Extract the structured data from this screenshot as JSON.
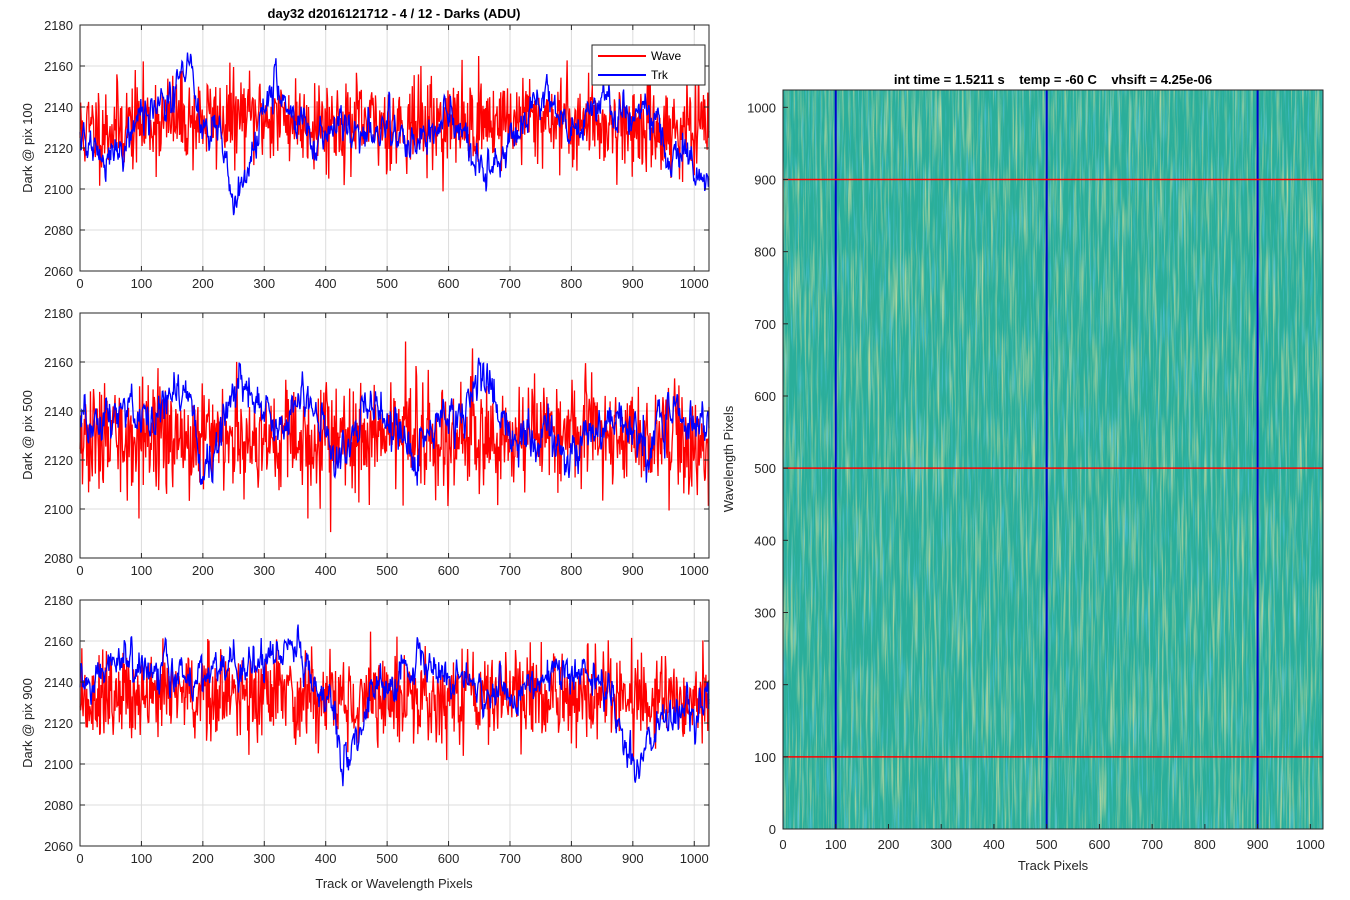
{
  "figure_title": "day32 d2016121712 - 4 / 12 - Darks (ADU)",
  "chart_data": [
    {
      "type": "line",
      "id": "top",
      "ylabel": "Dark @ pix 100",
      "xlabel": "",
      "xlim": [
        0,
        1024
      ],
      "ylim": [
        2060,
        2180
      ],
      "xticks": [
        0,
        100,
        200,
        300,
        400,
        500,
        600,
        700,
        800,
        900,
        1000
      ],
      "yticks": [
        2060,
        2080,
        2100,
        2120,
        2140,
        2160,
        2180
      ],
      "grid": true,
      "legend": "top-right",
      "series": [
        {
          "name": "Wave",
          "color": "#ff0000",
          "base": 2130,
          "noise": 11,
          "seed": 11,
          "trend_x": [
            0,
            120,
            300,
            450,
            600,
            760,
            900,
            1024
          ],
          "trend_y": [
            2128,
            2133,
            2135,
            2131,
            2132,
            2135,
            2130,
            2128
          ]
        },
        {
          "name": "Trk",
          "color": "#0000ff",
          "base": 2130,
          "noise": 4,
          "seed": 21,
          "trend_x": [
            0,
            20,
            40,
            80,
            120,
            160,
            180,
            200,
            230,
            250,
            270,
            300,
            320,
            340,
            360,
            380,
            400,
            430,
            450,
            480,
            500,
            520,
            540,
            560,
            580,
            600,
            620,
            640,
            660,
            680,
            700,
            720,
            740,
            760,
            780,
            800,
            820,
            840,
            860,
            880,
            900,
            920,
            940,
            960,
            980,
            1000,
            1024
          ],
          "trend_y": [
            2125,
            2120,
            2112,
            2128,
            2140,
            2150,
            2158,
            2130,
            2125,
            2090,
            2110,
            2140,
            2150,
            2138,
            2130,
            2125,
            2130,
            2133,
            2128,
            2125,
            2135,
            2128,
            2120,
            2128,
            2130,
            2135,
            2128,
            2115,
            2105,
            2110,
            2125,
            2130,
            2142,
            2148,
            2138,
            2130,
            2132,
            2140,
            2145,
            2138,
            2135,
            2140,
            2128,
            2115,
            2120,
            2100,
            2110
          ]
        }
      ]
    },
    {
      "type": "line",
      "id": "mid",
      "ylabel": "Dark @ pix 500",
      "xlabel": "",
      "xlim": [
        0,
        1024
      ],
      "ylim": [
        2080,
        2180
      ],
      "xticks": [
        0,
        100,
        200,
        300,
        400,
        500,
        600,
        700,
        800,
        900,
        1000
      ],
      "yticks": [
        2080,
        2100,
        2120,
        2140,
        2160,
        2180
      ],
      "grid": true,
      "series": [
        {
          "name": "Wave",
          "color": "#ff0000",
          "base": 2128,
          "noise": 11,
          "seed": 33,
          "trend_x": [
            0,
            200,
            400,
            600,
            800,
            1024
          ],
          "trend_y": [
            2127,
            2130,
            2130,
            2128,
            2132,
            2126
          ]
        },
        {
          "name": "Trk",
          "color": "#0000ff",
          "base": 2135,
          "noise": 4,
          "seed": 44,
          "trend_x": [
            0,
            20,
            40,
            60,
            80,
            100,
            120,
            140,
            160,
            180,
            200,
            220,
            240,
            260,
            280,
            300,
            320,
            340,
            360,
            380,
            400,
            420,
            440,
            460,
            480,
            500,
            520,
            540,
            560,
            580,
            600,
            620,
            640,
            660,
            680,
            700,
            720,
            740,
            760,
            780,
            800,
            820,
            840,
            860,
            880,
            900,
            920,
            940,
            960,
            980,
            1000,
            1024
          ],
          "trend_y": [
            2138,
            2130,
            2135,
            2140,
            2143,
            2138,
            2135,
            2142,
            2150,
            2145,
            2115,
            2125,
            2148,
            2152,
            2145,
            2140,
            2130,
            2138,
            2145,
            2140,
            2132,
            2118,
            2128,
            2140,
            2145,
            2138,
            2130,
            2120,
            2128,
            2135,
            2138,
            2140,
            2145,
            2155,
            2138,
            2132,
            2128,
            2125,
            2135,
            2125,
            2118,
            2130,
            2128,
            2135,
            2138,
            2130,
            2125,
            2130,
            2135,
            2140,
            2130,
            2140
          ]
        }
      ]
    },
    {
      "type": "line",
      "id": "bot",
      "ylabel": "Dark @ pix 900",
      "xlabel": "Track or Wavelength Pixels",
      "xlim": [
        0,
        1024
      ],
      "ylim": [
        2060,
        2180
      ],
      "xticks": [
        0,
        100,
        200,
        300,
        400,
        500,
        600,
        700,
        800,
        900,
        1000
      ],
      "yticks": [
        2060,
        2080,
        2100,
        2120,
        2140,
        2160,
        2180
      ],
      "grid": true,
      "series": [
        {
          "name": "Wave",
          "color": "#ff0000",
          "base": 2133,
          "noise": 11,
          "seed": 55,
          "trend_x": [
            0,
            200,
            400,
            600,
            800,
            1024
          ],
          "trend_y": [
            2130,
            2134,
            2133,
            2133,
            2134,
            2128
          ]
        },
        {
          "name": "Trk",
          "color": "#0000ff",
          "base": 2140,
          "noise": 4,
          "seed": 66,
          "trend_x": [
            0,
            30,
            60,
            100,
            150,
            200,
            250,
            300,
            350,
            380,
            410,
            430,
            450,
            480,
            520,
            560,
            600,
            640,
            660,
            700,
            740,
            780,
            820,
            860,
            880,
            900,
            940,
            980,
            1024
          ],
          "trend_y": [
            2138,
            2142,
            2150,
            2145,
            2145,
            2142,
            2148,
            2150,
            2160,
            2140,
            2125,
            2100,
            2110,
            2138,
            2142,
            2148,
            2140,
            2138,
            2130,
            2135,
            2140,
            2145,
            2142,
            2138,
            2115,
            2100,
            2118,
            2125,
            2132
          ]
        }
      ]
    },
    {
      "type": "heatmap",
      "id": "img",
      "title": "int time = 1.5211 s    temp = -60 C    vhsift = 4.25e-06",
      "xlabel": "Track Pixels",
      "ylabel": "Wavelength Pixels",
      "xlim": [
        0,
        1024
      ],
      "ylim": [
        0,
        1024
      ],
      "xticks": [
        0,
        100,
        200,
        300,
        400,
        500,
        600,
        700,
        800,
        900,
        1000
      ],
      "yticks": [
        0,
        100,
        200,
        300,
        400,
        500,
        600,
        700,
        800,
        900,
        1000
      ],
      "base_color": "#2aae9a",
      "highlight_color": "#a3bd5b",
      "vertical_lines": {
        "color": "#0000cc",
        "x": [
          100,
          500,
          900
        ]
      },
      "horizontal_lines": {
        "color": "#ff0000",
        "y": [
          100,
          500,
          900
        ]
      }
    }
  ]
}
